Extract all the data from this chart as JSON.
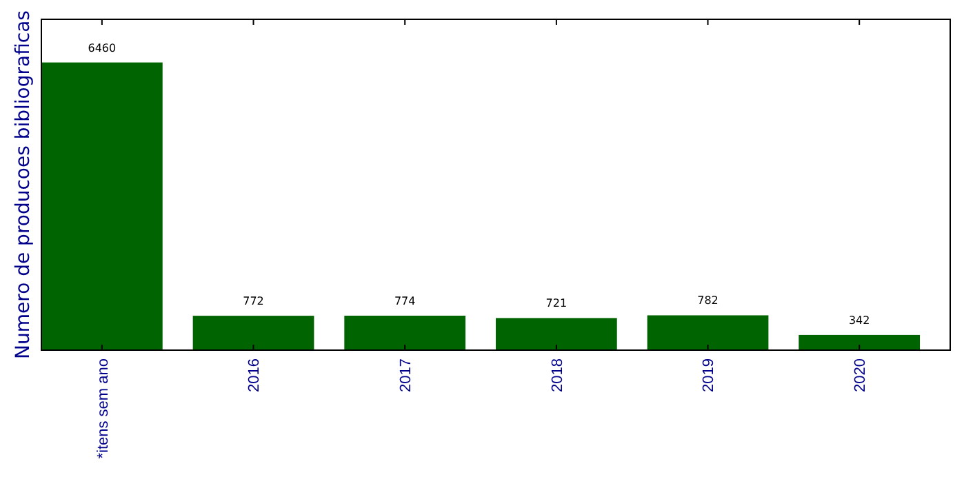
{
  "chart_data": {
    "type": "bar",
    "ylabel": "Numero de producoes bibliograficas",
    "categories": [
      "*itens sem ano",
      "2016",
      "2017",
      "2018",
      "2019",
      "2020"
    ],
    "values": [
      6460,
      772,
      774,
      721,
      782,
      342
    ],
    "color": "#006400",
    "data_labels": true,
    "tick_labels": "x"
  }
}
